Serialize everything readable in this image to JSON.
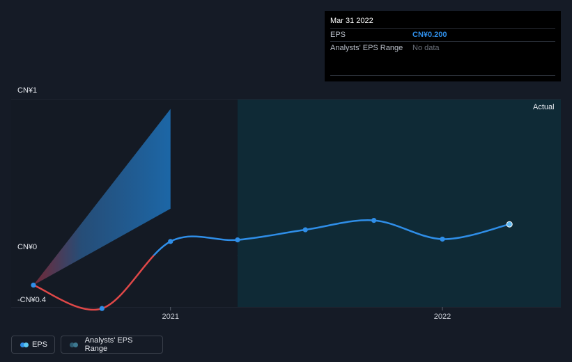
{
  "tooltip": {
    "date": "Mar 31 2022",
    "rows": [
      {
        "label": "EPS",
        "value": "CN¥0.200"
      },
      {
        "label": "Analysts' EPS Range",
        "value": "No data"
      }
    ]
  },
  "actual_label": "Actual",
  "legend": {
    "eps_label": "EPS",
    "range_label": "Analysts' EPS Range"
  },
  "colors": {
    "background": "#151b26",
    "eps_positive": "#2f8ee8",
    "eps_negative": "#e04848",
    "actual_region": "#0f2a36",
    "range_fill": "#1d6fb5"
  },
  "chart_data": {
    "type": "line",
    "y_tick_labels": [
      "CN¥1",
      "CN¥0",
      "-CN¥0.4"
    ],
    "x_tick_labels": [
      "2021",
      "2022"
    ],
    "ylim": [
      -0.4,
      1.0
    ],
    "series": [
      {
        "name": "EPS",
        "x": [
          "2020-06-30",
          "2020-09-30",
          "2020-12-31",
          "2021-03-31",
          "2021-06-30",
          "2021-09-30",
          "2021-12-31",
          "2022-03-31"
        ],
        "values": [
          -0.19,
          -0.34,
          0.09,
          0.1,
          0.165,
          0.225,
          0.105,
          0.2
        ]
      }
    ],
    "analyst_range": {
      "x": [
        "2020-06-30",
        "2020-12-31"
      ],
      "low": [
        -0.19,
        0.3
      ],
      "high": [
        -0.19,
        0.94
      ]
    },
    "actual_region_start": "2021-03-31",
    "legend_position": "bottom-left",
    "grid": true
  }
}
